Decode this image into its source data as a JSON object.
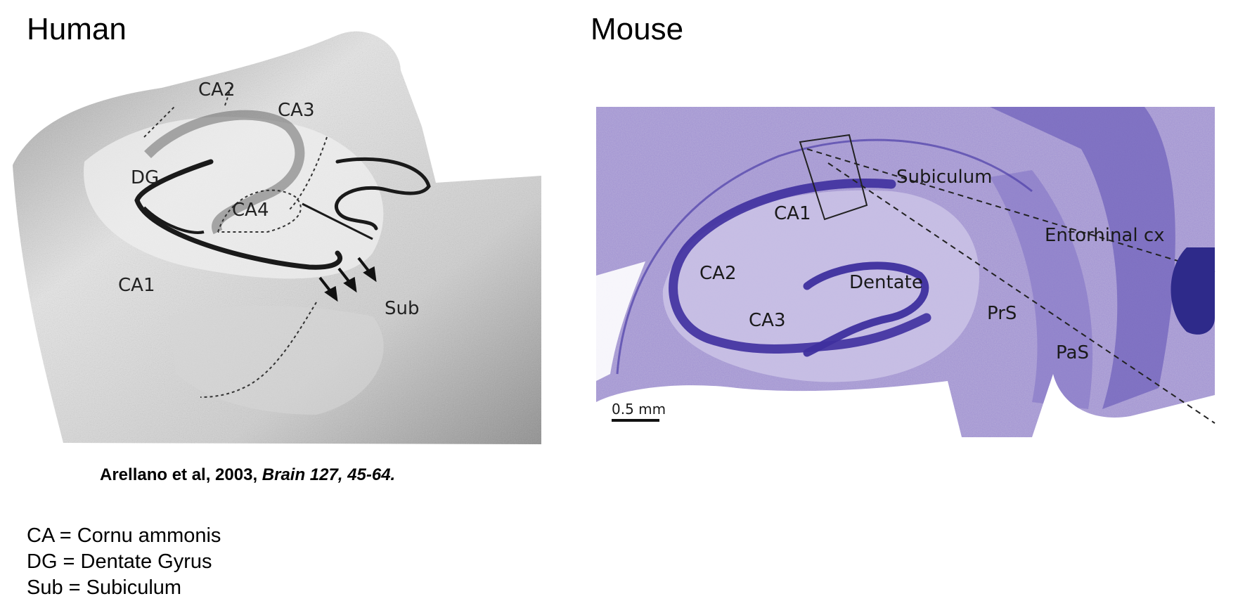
{
  "titles": {
    "human": "Human",
    "mouse": "Mouse"
  },
  "human_figure": {
    "labels": {
      "ca2": "CA2",
      "ca3": "CA3",
      "dg": "DG",
      "ca4": "CA4",
      "ca1": "CA1",
      "sub": "Sub"
    }
  },
  "mouse_figure": {
    "labels": {
      "subiculum": "Subiculum",
      "ca1": "CA1",
      "entorhinal": "Entorhinal cx",
      "ca2": "CA2",
      "dentate": "Dentate",
      "ca3": "CA3",
      "prs": "PrS",
      "pas": "PaS",
      "scale": "0.5 mm"
    }
  },
  "citation": {
    "authors": "Arellano et al, 2003, ",
    "journal": "Brain 127, 45-64."
  },
  "legend": {
    "items": [
      "CA = Cornu ammonis",
      "DG = Dentate Gyrus",
      "Sub = Subiculum"
    ]
  },
  "colors": {
    "mouse_bg": "#b6acd8",
    "mouse_dark": "#3e2f9e",
    "human_bg": "#d9d9d9",
    "human_dark": "#1a1a1a"
  }
}
